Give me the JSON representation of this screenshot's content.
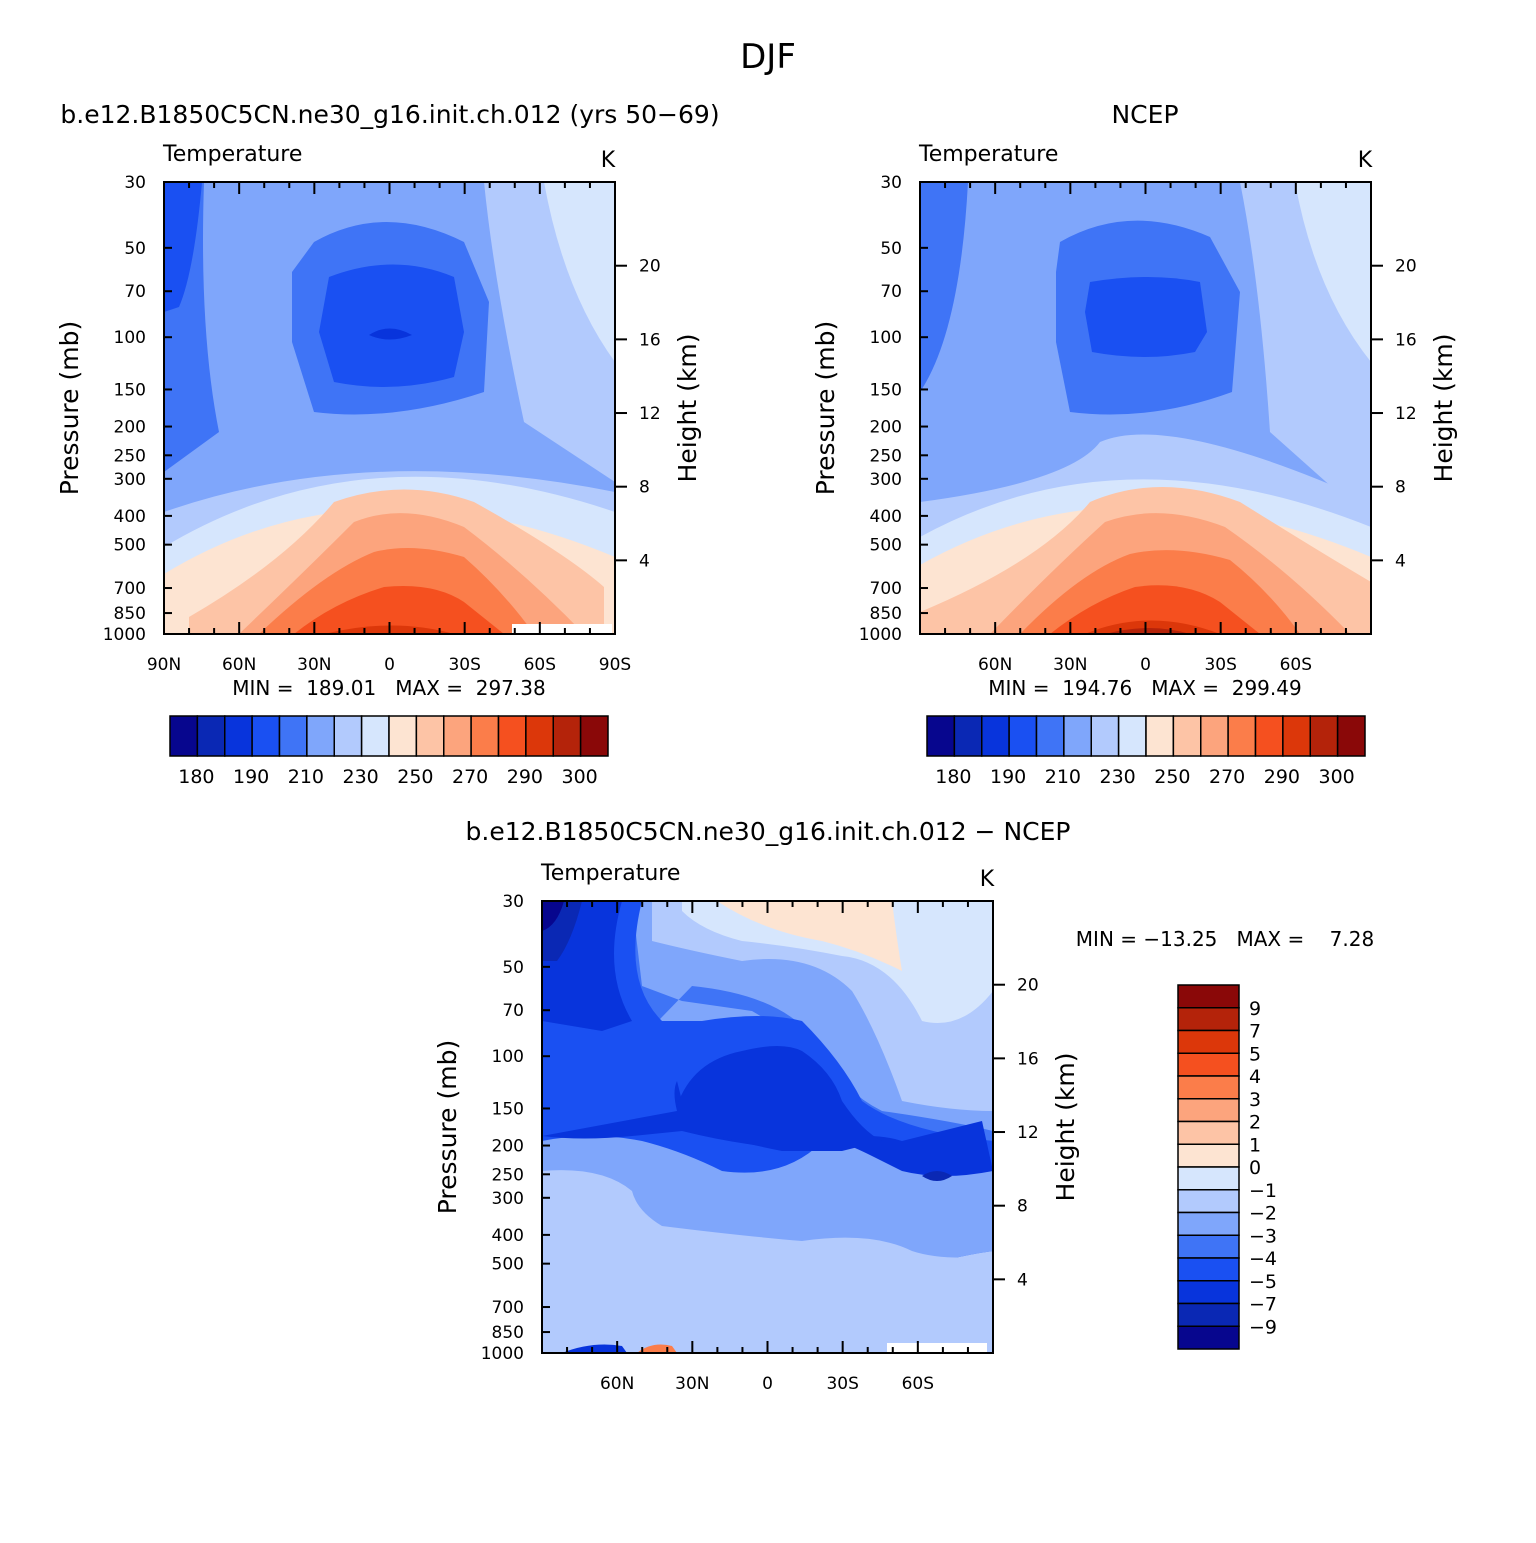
{
  "page": {
    "title": "DJF"
  },
  "chart_data": [
    {
      "type": "heatmap",
      "subtitle": "b.e12.B1850C5CN.ne30_g16.init.ch.012 (yrs 50−69)",
      "variable": "Temperature",
      "units": "K",
      "ylabel": "Pressure (mb)",
      "ylabel_right": "Height (km)",
      "pressure_ticks": [
        "30",
        "50",
        "70",
        "100",
        "150",
        "200",
        "250",
        "300",
        "400",
        "500",
        "700",
        "850",
        "1000"
      ],
      "height_ticks": [
        "20",
        "16",
        "12",
        "8",
        "4"
      ],
      "lat_ticks": [
        "90N",
        "60N",
        "30N",
        "0",
        "30S",
        "60S",
        "90S"
      ],
      "stats": "MIN =  189.01   MAX =  297.38",
      "colorbar_ticks": [
        "180",
        "190",
        "210",
        "230",
        "250",
        "270",
        "290",
        "300"
      ],
      "levels": [
        180,
        185,
        190,
        200,
        210,
        220,
        230,
        240,
        250,
        260,
        270,
        280,
        290,
        295,
        300
      ],
      "reversed_y": true,
      "y_scale": "log"
    },
    {
      "type": "heatmap",
      "subtitle": "NCEP",
      "variable": "Temperature",
      "units": "K",
      "ylabel": "Pressure (mb)",
      "ylabel_right": "Height (km)",
      "pressure_ticks": [
        "30",
        "50",
        "70",
        "100",
        "150",
        "200",
        "250",
        "300",
        "400",
        "500",
        "700",
        "850",
        "1000"
      ],
      "height_ticks": [
        "20",
        "16",
        "12",
        "8",
        "4"
      ],
      "lat_ticks": [
        "60N",
        "30N",
        "0",
        "30S",
        "60S"
      ],
      "stats": "MIN =  194.76   MAX =  299.49",
      "colorbar_ticks": [
        "180",
        "190",
        "210",
        "230",
        "250",
        "270",
        "290",
        "300"
      ],
      "levels": [
        180,
        185,
        190,
        200,
        210,
        220,
        230,
        240,
        250,
        260,
        270,
        280,
        290,
        295,
        300
      ],
      "reversed_y": true,
      "y_scale": "log"
    },
    {
      "type": "heatmap",
      "subtitle": "b.e12.B1850C5CN.ne30_g16.init.ch.012 − NCEP",
      "variable": "Temperature",
      "units": "K",
      "ylabel": "Pressure (mb)",
      "ylabel_right": "Height (km)",
      "pressure_ticks": [
        "30",
        "50",
        "70",
        "100",
        "150",
        "200",
        "250",
        "300",
        "400",
        "500",
        "700",
        "850",
        "1000"
      ],
      "height_ticks": [
        "20",
        "16",
        "12",
        "8",
        "4"
      ],
      "lat_ticks": [
        "60N",
        "30N",
        "0",
        "30S",
        "60S"
      ],
      "stats": "MIN = −13.25   MAX =    7.28",
      "colorbar_ticks": [
        "9",
        "7",
        "5",
        "4",
        "3",
        "2",
        "1",
        "0",
        "−1",
        "−2",
        "−3",
        "−4",
        "−5",
        "−7",
        "−9"
      ],
      "levels": [
        -9,
        -7,
        -5,
        -4,
        -3,
        -2,
        -1,
        0,
        1,
        2,
        3,
        4,
        5,
        7,
        9
      ],
      "reversed_y": true,
      "y_scale": "log"
    }
  ],
  "colors": {
    "temp_palette": [
      "#07068e",
      "#0a28b4",
      "#0834dc",
      "#1a50f2",
      "#3f74f6",
      "#7fa6fb",
      "#b2cafd",
      "#d6e6fd",
      "#fde4d2",
      "#fdc4a6",
      "#fca47d",
      "#fb7d4a",
      "#f5501f",
      "#dc370a",
      "#b4230a",
      "#8a0808"
    ],
    "diff_palette": [
      "#8a0808",
      "#b4230a",
      "#dc370a",
      "#f5501f",
      "#fb7d4a",
      "#fca47d",
      "#fdc4a6",
      "#fde4d2",
      "#d6e6fd",
      "#b2cafd",
      "#7fa6fb",
      "#3f74f6",
      "#1a50f2",
      "#0834dc",
      "#0a28b4",
      "#07068e"
    ]
  }
}
